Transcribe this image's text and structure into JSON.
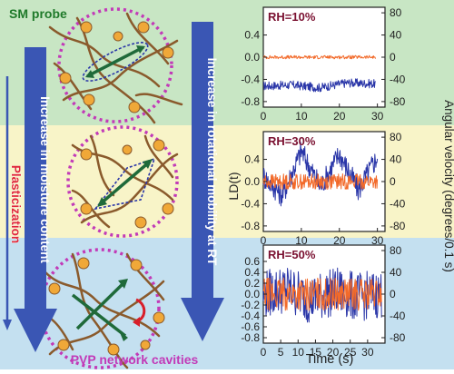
{
  "colors": {
    "band_green": "#c8e6c4",
    "band_yellow": "#f8f4c8",
    "band_blue": "#c4e0f0",
    "arrow_blue": "#3a56b4",
    "series_blue": "#2a36a8",
    "series_orange": "#f26a2a",
    "title_green": "#1f7a2a",
    "title_red": "#e0283a",
    "cavity_magenta": "#c23ab8",
    "polymer_brown": "#8a5a2c",
    "probe_green": "#1f6a3a",
    "rotation_red": "#d81e2a"
  },
  "header": {
    "sm_probe_label": "SM probe"
  },
  "footer": {
    "pvp_label": "PVP network cavities",
    "time_label": "Time (s)"
  },
  "side_labels": {
    "moisture": "Increase in moisture content",
    "plasticization": "Plasticization",
    "mobility": "Increase in rotational mobility at RT"
  },
  "axes": {
    "left_label": "LD(t)",
    "right_label": "Angular velocity (degrees/0.1 s)"
  },
  "icons": {
    "probe": "double-headed-arrow-icon",
    "rotation": "curved-rotation-arrow-icon"
  },
  "chart_data": [
    {
      "type": "line",
      "title": "RH=10%",
      "xlabel": "Time (s)",
      "ylabel": "LD(t)",
      "y2label": "Angular velocity (degrees/0.1 s)",
      "xlim": [
        0,
        32
      ],
      "ylim": [
        -0.9,
        0.9
      ],
      "y2lim": [
        -90,
        90
      ],
      "x_ticks": [
        "0",
        "10",
        "20",
        "30"
      ],
      "y_ticks": [
        "0.4",
        "0.0",
        "-0.4",
        "-0.8"
      ],
      "y2_ticks": [
        "80",
        "40",
        "0",
        "-40",
        "-80"
      ],
      "series": [
        {
          "name": "LD(t)",
          "color": "#2a36a8",
          "axis": "left",
          "x_end": 29.5,
          "mean": [
            -0.52,
            -0.5,
            -0.55,
            -0.46,
            -0.48
          ],
          "amp": 0.08
        },
        {
          "name": "Angular velocity",
          "color": "#f26a2a",
          "axis": "right",
          "x_end": 29.5,
          "mean": [
            0,
            0,
            0,
            0,
            0
          ],
          "amp": 3
        }
      ]
    },
    {
      "type": "line",
      "title": "RH=30%",
      "xlabel": "Time (s)",
      "ylabel": "LD(t)",
      "y2label": "Angular velocity (degrees/0.1 s)",
      "xlim": [
        0,
        32
      ],
      "ylim": [
        -0.9,
        0.9
      ],
      "y2lim": [
        -90,
        90
      ],
      "x_ticks": [
        "0",
        "10",
        "20",
        "30"
      ],
      "y_ticks": [
        "0.4",
        "0.0",
        "-0.4",
        "-0.8"
      ],
      "y2_ticks": [
        "80",
        "40",
        "0",
        "-40",
        "-80"
      ],
      "series": [
        {
          "name": "LD(t)",
          "color": "#2a36a8",
          "axis": "left",
          "x_end": 30,
          "mean": [
            0.1,
            -0.25,
            0.55,
            -0.1,
            0.5,
            -0.15,
            0.45
          ],
          "amp": 0.22
        },
        {
          "name": "Angular velocity",
          "color": "#f26a2a",
          "axis": "right",
          "x_end": 30,
          "mean": [
            0,
            0,
            0,
            0,
            0,
            0,
            0
          ],
          "amp": 14
        }
      ]
    },
    {
      "type": "line",
      "title": "RH=50%",
      "xlabel": "Time (s)",
      "ylabel": "LD(t)",
      "y2label": "Angular velocity (degrees/0.1 s)",
      "xlim": [
        0,
        35
      ],
      "ylim": [
        -0.9,
        0.9
      ],
      "y2lim": [
        -90,
        90
      ],
      "x_ticks": [
        "0",
        "5",
        "10",
        "15",
        "20",
        "25",
        "30"
      ],
      "y_ticks": [
        "0.6",
        "0.4",
        "0.2",
        "0.0",
        "-0.2",
        "-0.4",
        "-0.6",
        "-0.8"
      ],
      "y2_ticks": [
        "80",
        "40",
        "0",
        "-40",
        "-80"
      ],
      "series": [
        {
          "name": "LD(t)",
          "color": "#2a36a8",
          "axis": "left",
          "x_end": 34,
          "mean": [
            0,
            0.1,
            -0.1,
            0.05,
            -0.05,
            0
          ],
          "amp": 0.45
        },
        {
          "name": "Angular velocity",
          "color": "#f26a2a",
          "axis": "right",
          "x_end": 34,
          "mean": [
            0,
            0,
            0,
            0,
            0,
            0
          ],
          "amp": 30
        }
      ]
    }
  ]
}
